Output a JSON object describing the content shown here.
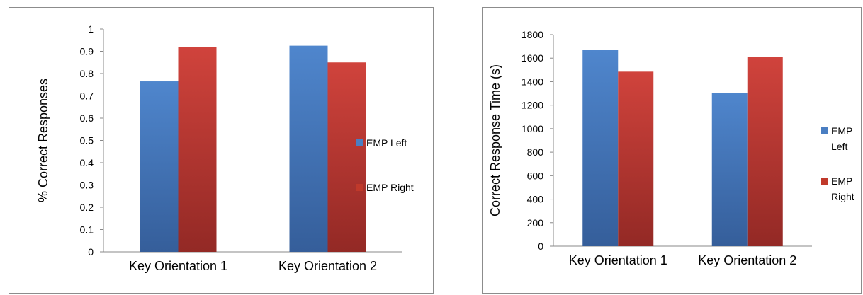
{
  "chart_data": [
    {
      "type": "bar",
      "title": "",
      "xlabel": "",
      "ylabel": "% Correct Responses",
      "categories": [
        "Key Orientation 1",
        "Key Orientation 2"
      ],
      "series": [
        {
          "name": "EMP Left",
          "values": [
            0.765,
            0.925
          ]
        },
        {
          "name": "EMP Right",
          "values": [
            0.92,
            0.85
          ]
        }
      ],
      "ylim": [
        0,
        1
      ],
      "yticks": [
        "0",
        "0.1",
        "0.2",
        "0.3",
        "0.4",
        "0.5",
        "0.6",
        "0.7",
        "0.8",
        "0.9",
        "1"
      ],
      "legend": "right",
      "legend_lines": [
        [
          "EMP Left"
        ],
        [
          "EMP Right"
        ]
      ],
      "colors": {
        "EMP Left": "#4a7ec2",
        "EMP Right": "#c0392b"
      }
    },
    {
      "type": "bar",
      "title": "",
      "xlabel": "",
      "ylabel": "Correct Response Time (s)",
      "categories": [
        "Key Orientation 1",
        "Key Orientation 2"
      ],
      "series": [
        {
          "name": "EMP Left",
          "values": [
            1670,
            1305
          ]
        },
        {
          "name": "EMP Right",
          "values": [
            1485,
            1610
          ]
        }
      ],
      "ylim": [
        0,
        1800
      ],
      "yticks": [
        "0",
        "200",
        "400",
        "600",
        "800",
        "1000",
        "1200",
        "1400",
        "1600",
        "1800"
      ],
      "legend": "right",
      "legend_lines": [
        [
          "EMP",
          "Left"
        ],
        [
          "EMP",
          "Right"
        ]
      ],
      "colors": {
        "EMP Left": "#4a7ec2",
        "EMP Right": "#c0392b"
      }
    }
  ]
}
